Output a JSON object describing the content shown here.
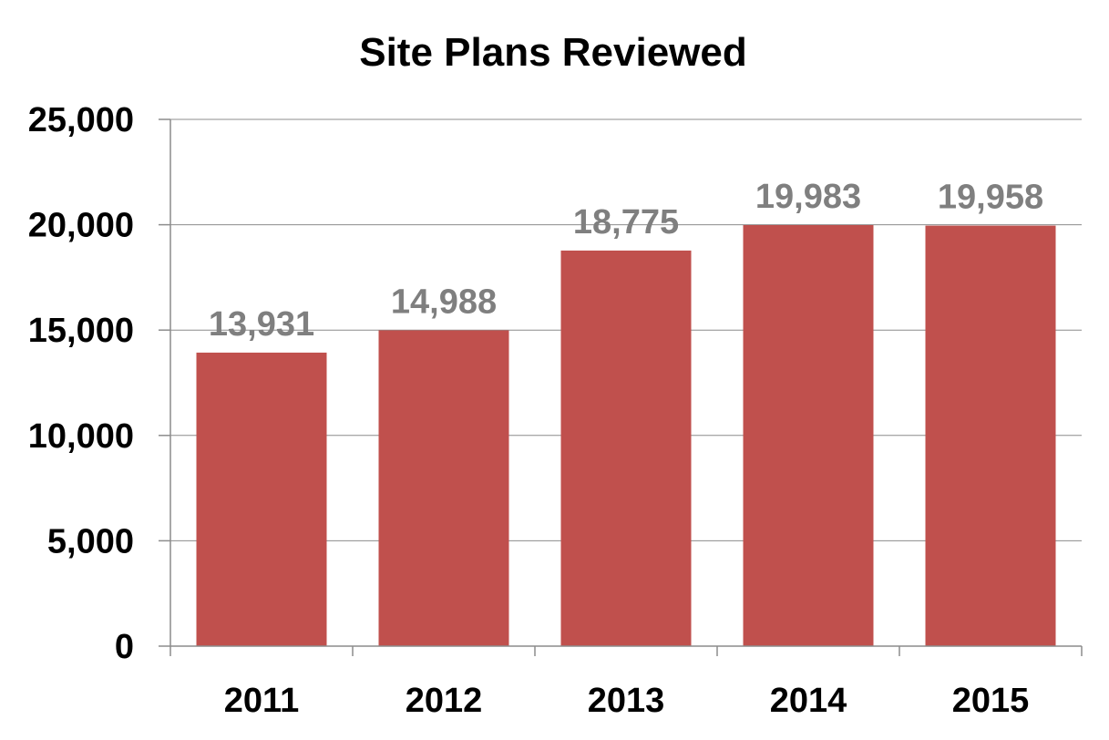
{
  "chart_data": {
    "type": "bar",
    "title": "Site Plans Reviewed",
    "categories": [
      "2011",
      "2012",
      "2013",
      "2014",
      "2015"
    ],
    "values": [
      13931,
      14988,
      18775,
      19983,
      19958
    ],
    "data_labels": [
      "13,931",
      "14,988",
      "18,775",
      "19,983",
      "19,958"
    ],
    "yticks": [
      0,
      5000,
      10000,
      15000,
      20000,
      25000
    ],
    "ytick_labels": [
      "0",
      "5,000",
      "10,000",
      "15,000",
      "20,000",
      "25,000"
    ],
    "ylim": [
      0,
      25000
    ],
    "xlabel": "",
    "ylabel": "",
    "grid": true,
    "legend": "none",
    "bar_color": "#c0504d",
    "data_label_color": "#7f7f7f"
  }
}
